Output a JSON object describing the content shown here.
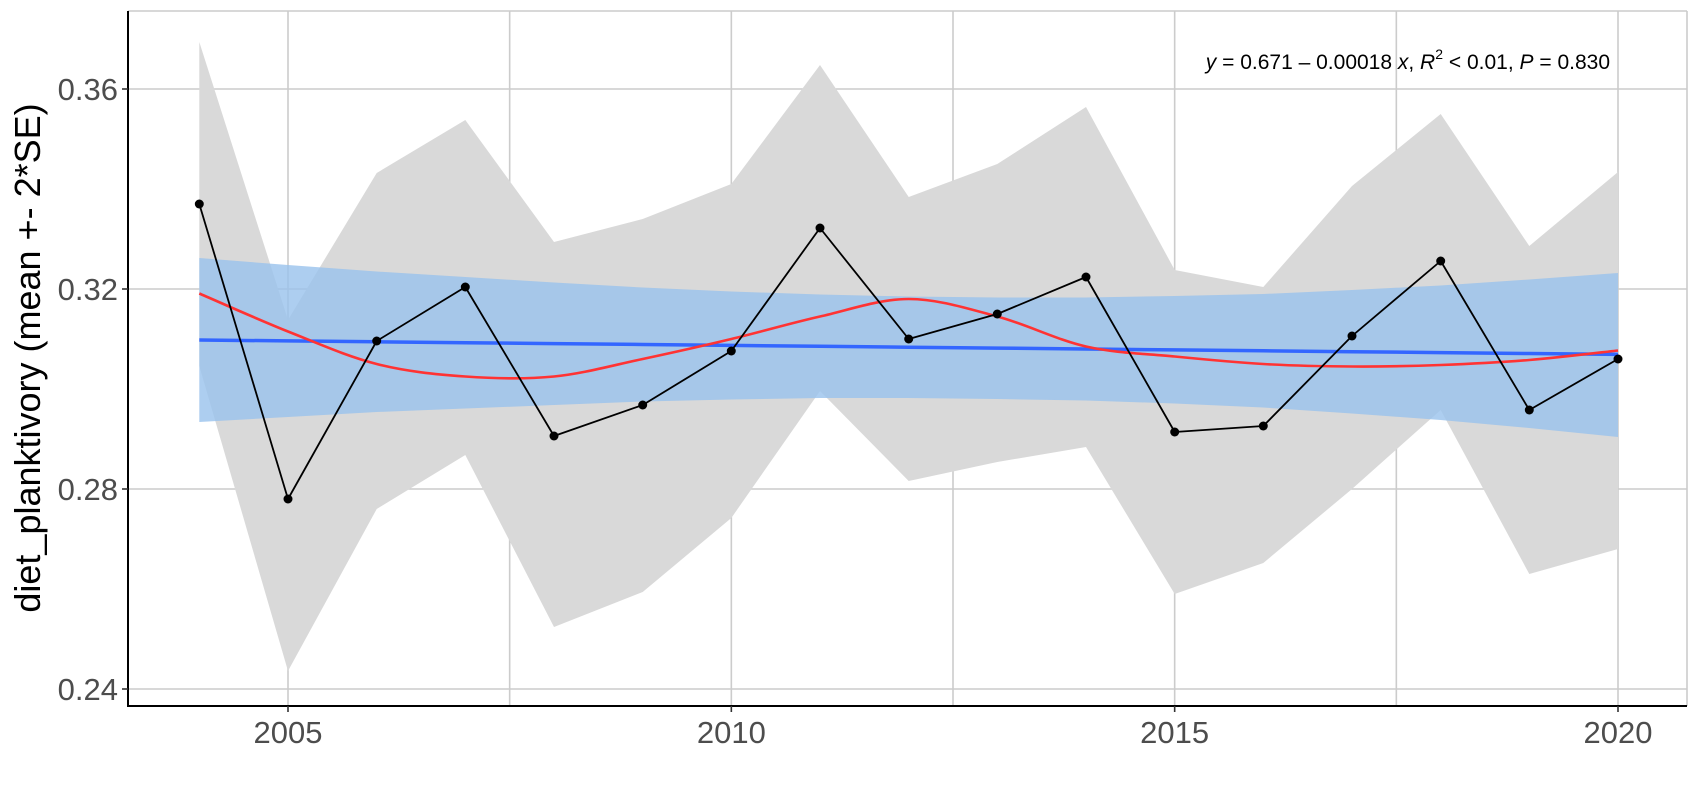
{
  "chart_data": {
    "type": "line",
    "title": "",
    "xlabel": "",
    "ylabel": "diet_planktivory (mean +- 2*SE)",
    "xlim": [
      2003.1,
      2020.8
    ],
    "ylim": [
      0.2366,
      0.3734
    ],
    "x_ticks": [
      2005,
      2010,
      2015,
      2020
    ],
    "x_tick_labels": [
      "2005",
      "2010",
      "2015",
      "2020"
    ],
    "y_ticks": [
      0.24,
      0.28,
      0.32,
      0.36
    ],
    "y_tick_labels": [
      "0.24",
      "0.28",
      "0.32",
      "0.36"
    ],
    "grid": true,
    "x": [
      2004,
      2005,
      2006,
      2007,
      2008,
      2009,
      2010,
      2011,
      2012,
      2013,
      2014,
      2015,
      2016,
      2017,
      2018,
      2019,
      2020
    ],
    "series": [
      {
        "name": "mean",
        "type": "line+points",
        "color": "#000000",
        "values": [
          0.337,
          0.278,
          0.3096,
          0.3204,
          0.2906,
          0.2968,
          0.3076,
          0.3322,
          0.31,
          0.315,
          0.3224,
          0.2914,
          0.2926,
          0.3106,
          0.3256,
          0.2958,
          0.306
        ]
      },
      {
        "name": "mean + 2*SE",
        "type": "ribbon-upper",
        "color": "#d9d9d9",
        "values": [
          0.3694,
          0.3138,
          0.3432,
          0.3538,
          0.3294,
          0.334,
          0.341,
          0.3648,
          0.3384,
          0.345,
          0.3564,
          0.3238,
          0.3204,
          0.3406,
          0.355,
          0.3286,
          0.3434
        ]
      },
      {
        "name": "mean - 2*SE",
        "type": "ribbon-lower",
        "color": "#d9d9d9",
        "values": [
          0.3046,
          0.2436,
          0.276,
          0.2868,
          0.2524,
          0.2594,
          0.2742,
          0.2996,
          0.2816,
          0.2854,
          0.2884,
          0.259,
          0.2652,
          0.28,
          0.2958,
          0.263,
          0.268
        ]
      },
      {
        "name": "linear fit",
        "type": "line",
        "color": "#3366ff",
        "values": [
          0.3098,
          0.30962,
          0.30944,
          0.30926,
          0.30908,
          0.3089,
          0.30872,
          0.30854,
          0.30836,
          0.30818,
          0.308,
          0.30782,
          0.30764,
          0.30746,
          0.30728,
          0.3071,
          0.30692
        ]
      },
      {
        "name": "linear fit CI upper",
        "type": "ribbon-upper",
        "color": "#99c2ec",
        "values": [
          0.3262,
          0.3248,
          0.3235,
          0.3224,
          0.3213,
          0.3203,
          0.3195,
          0.3189,
          0.3185,
          0.3183,
          0.3183,
          0.3186,
          0.319,
          0.3198,
          0.3207,
          0.3219,
          0.3232
        ]
      },
      {
        "name": "linear fit CI lower",
        "type": "ribbon-lower",
        "color": "#99c2ec",
        "values": [
          0.2934,
          0.2944,
          0.2954,
          0.2961,
          0.2968,
          0.2975,
          0.2979,
          0.2982,
          0.2982,
          0.298,
          0.2977,
          0.2971,
          0.2963,
          0.2951,
          0.2938,
          0.2922,
          0.2904
        ]
      },
      {
        "name": "loess smooth",
        "type": "line",
        "color": "#ff3333",
        "values": [
          0.3191,
          0.3115,
          0.305,
          0.3025,
          0.3025,
          0.306,
          0.31,
          0.3145,
          0.318,
          0.3145,
          0.3085,
          0.3065,
          0.305,
          0.3045,
          0.3048,
          0.3058,
          0.3077
        ]
      }
    ],
    "annotations": [
      {
        "text_parts": [
          "y",
          " = 0.671 – 0.00018 ",
          "x",
          ", ",
          "R",
          "2",
          " < 0.01, ",
          "P",
          " = 0.830"
        ],
        "full_text": "y = 0.671 – 0.00018 x, R² < 0.01, P = 0.830",
        "position": "top-right"
      }
    ],
    "legend": null
  },
  "plot": {
    "ylabel": "diet_planktivory (mean +- 2*SE)",
    "annotation": {
      "y_var": "y",
      "eq_mid": " = 0.671 – 0.00018 ",
      "x_var": "x",
      "sep": ", ",
      "r_var": "R",
      "r_sup": "2",
      "r_val": " < 0.01, ",
      "p_var": "P",
      "p_val": " = 0.830"
    },
    "colors": {
      "background": "#ffffff",
      "grid": "#cccccc",
      "axis": "#000000",
      "se_ribbon": "#d9d9d9",
      "ci_ribbon": "#99c2ec",
      "ci_ribbon_alpha": 0.8,
      "lm_line": "#3366ff",
      "loess_line": "#ff3333",
      "mean_line": "#000000"
    }
  }
}
